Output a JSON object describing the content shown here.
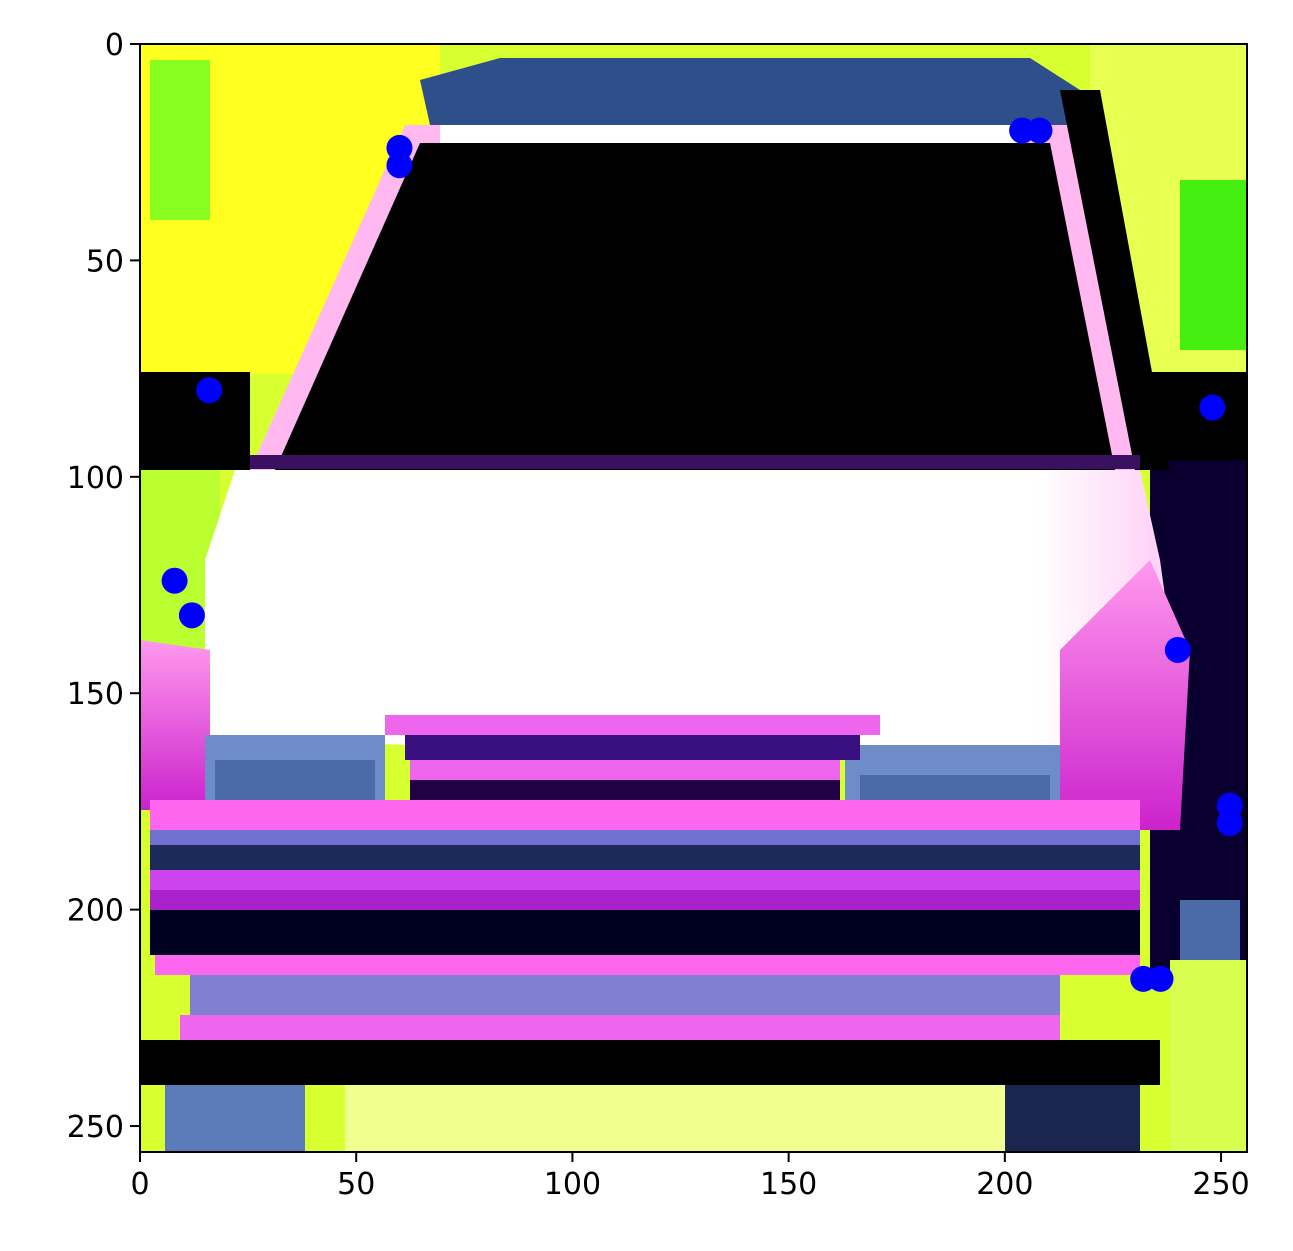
{
  "chart_data": {
    "type": "scatter",
    "title": "",
    "xlabel": "",
    "ylabel": "",
    "xlim": [
      0,
      256
    ],
    "ylim": [
      256,
      0
    ],
    "y_axis_inverted": true,
    "grid": false,
    "background": "pixelated false-color image of a car front (yellow-green surroundings, black windshield, white hood, magenta/purple grille, blue lights)",
    "x_ticks": [
      0,
      50,
      100,
      150,
      200,
      250
    ],
    "y_ticks": [
      0,
      50,
      100,
      150,
      200,
      250
    ],
    "x_tick_labels": [
      "0",
      "50",
      "100",
      "150",
      "200",
      "250"
    ],
    "y_tick_labels": [
      "0",
      "50",
      "100",
      "150",
      "200",
      "250"
    ],
    "marker_color": "#0000ff",
    "points": [
      {
        "x": 60,
        "y": 24
      },
      {
        "x": 60,
        "y": 28
      },
      {
        "x": 204,
        "y": 20
      },
      {
        "x": 208,
        "y": 20
      },
      {
        "x": 16,
        "y": 80
      },
      {
        "x": 248,
        "y": 84
      },
      {
        "x": 8,
        "y": 124
      },
      {
        "x": 12,
        "y": 132
      },
      {
        "x": 240,
        "y": 140
      },
      {
        "x": 252,
        "y": 176
      },
      {
        "x": 252,
        "y": 180
      },
      {
        "x": 232,
        "y": 216
      },
      {
        "x": 236,
        "y": 216
      }
    ]
  }
}
